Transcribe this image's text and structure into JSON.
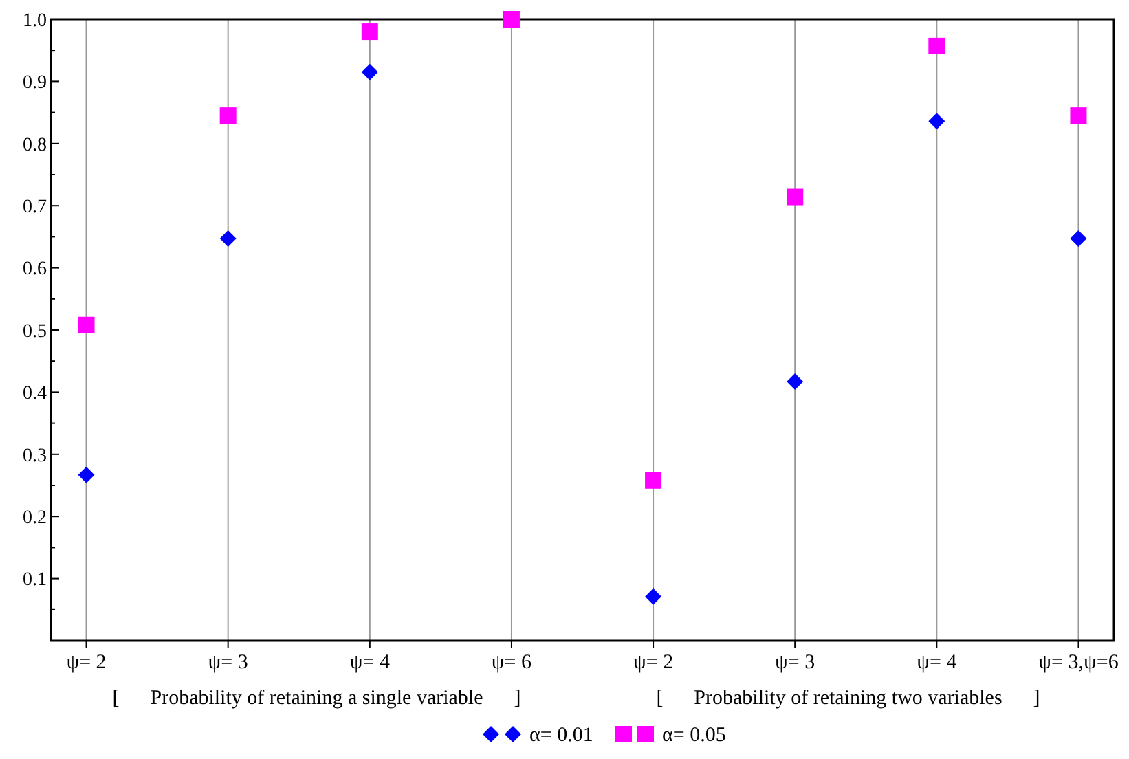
{
  "chart_data": {
    "type": "scatter",
    "categories": [
      "ψ= 2",
      "ψ= 3",
      "ψ= 4",
      "ψ= 6",
      "ψ= 2",
      "ψ= 3",
      "ψ= 4",
      "ψ= 3,ψ=6"
    ],
    "series": [
      {
        "name": "α= 0.01",
        "color": "#0000ff",
        "marker": "diamond",
        "values": [
          0.267,
          0.647,
          0.915,
          null,
          0.071,
          0.417,
          0.836,
          0.647
        ]
      },
      {
        "name": "α= 0.05",
        "color": "#ff00ff",
        "marker": "square",
        "values": [
          0.508,
          0.845,
          0.98,
          1.0,
          0.258,
          0.714,
          0.957,
          0.845
        ]
      }
    ],
    "ylim": [
      0,
      1.0
    ],
    "yticks": [
      {
        "value": 0.05,
        "label": null
      },
      0.1,
      {
        "value": 0.15,
        "label": null
      },
      0.2,
      {
        "value": 0.25,
        "label": null
      },
      0.3,
      {
        "value": 0.35,
        "label": null
      },
      0.4,
      {
        "value": 0.45,
        "label": null
      },
      0.5,
      {
        "value": 0.55,
        "label": null
      },
      0.6,
      {
        "value": 0.65,
        "label": null
      },
      0.7,
      {
        "value": 0.75,
        "label": null
      },
      0.8,
      {
        "value": 0.85,
        "label": null
      },
      0.9,
      {
        "value": 0.95,
        "label": null
      },
      {
        "value": 1,
        "label": "1.0"
      }
    ],
    "grid": "x",
    "legend": "bottom",
    "annotations": [
      "[      Probability of retaining a single variable      ]",
      "[      Probability of retaining two variables      ]"
    ]
  }
}
